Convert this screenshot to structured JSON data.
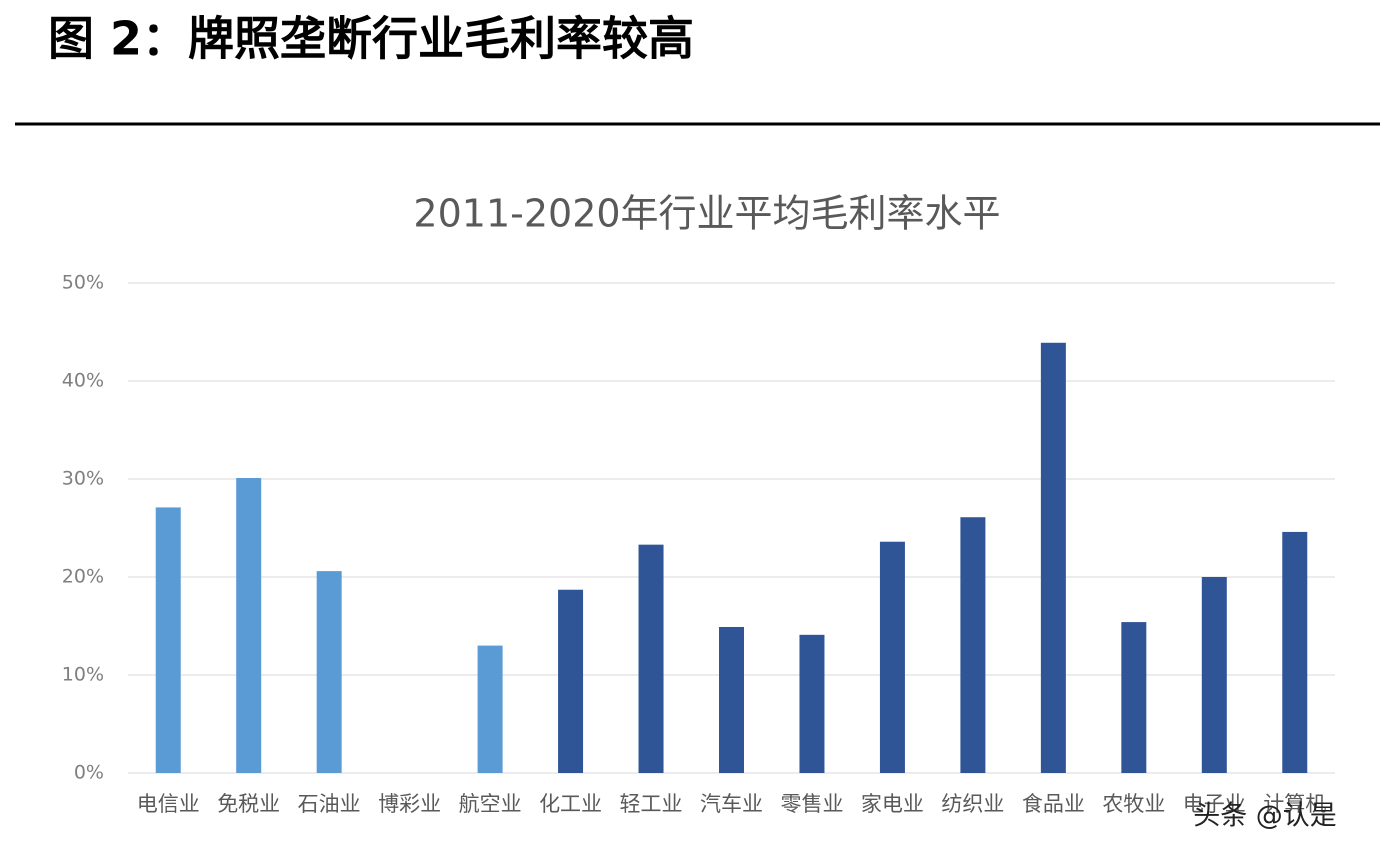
{
  "heading": "图 2：牌照垄断行业毛利率较高",
  "watermark": "头条 @认是",
  "chart_data": {
    "type": "bar",
    "title": "2011-2020年行业平均毛利率水平",
    "categories": [
      "电信业",
      "免税业",
      "石油业",
      "博彩业",
      "航空业",
      "化工业",
      "轻工业",
      "汽车业",
      "零售业",
      "家电业",
      "纺织业",
      "食品业",
      "农牧业",
      "电子业",
      "计算机"
    ],
    "values": [
      27.1,
      30.1,
      20.6,
      null,
      13.0,
      18.7,
      23.3,
      14.9,
      14.1,
      23.6,
      26.1,
      43.9,
      15.4,
      20.0,
      24.6
    ],
    "colors": [
      "#5b9bd5",
      "#5b9bd5",
      "#5b9bd5",
      "#5b9bd5",
      "#5b9bd5",
      "#2f5597",
      "#2f5597",
      "#2f5597",
      "#2f5597",
      "#2f5597",
      "#2f5597",
      "#2f5597",
      "#2f5597",
      "#2f5597",
      "#2f5597"
    ],
    "ylim": [
      0,
      50
    ],
    "yticks": [
      {
        "value": 0,
        "label": "0%"
      },
      {
        "value": 10,
        "label": "10%"
      },
      {
        "value": 20,
        "label": "20%"
      },
      {
        "value": 30,
        "label": "30%"
      },
      {
        "value": 40,
        "label": "40%"
      },
      {
        "value": 50,
        "label": "50%"
      }
    ],
    "grid": true
  }
}
